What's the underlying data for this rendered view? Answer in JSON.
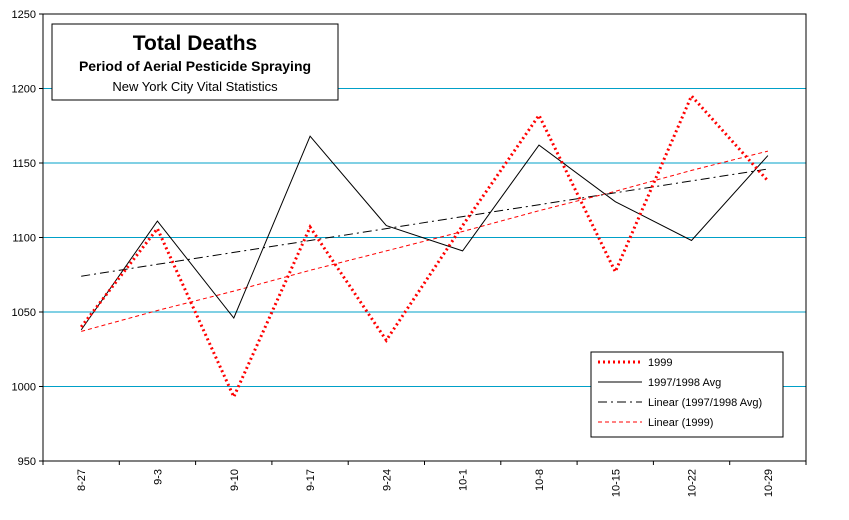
{
  "chart_data": {
    "type": "line",
    "title": "Total Deaths",
    "subtitle": "Period of Aerial Pesticide Spraying",
    "subtitle2": "New York City Vital Statistics",
    "xlabel": "",
    "ylabel": "",
    "categories": [
      "8-27",
      "9-3",
      "9-10",
      "9-17",
      "9-24",
      "10-1",
      "10-8",
      "10-15",
      "10-22",
      "10-29"
    ],
    "ylim": [
      950,
      1250
    ],
    "yticks": [
      "950",
      "1000",
      "1050",
      "1100",
      "1150",
      "1200",
      "1250"
    ],
    "grid": true,
    "legend_position": "bottom-right",
    "series": [
      {
        "name": "1999",
        "values": [
          1040,
          1106,
          993,
          1107,
          1031,
          1108,
          1182,
          1077,
          1195,
          1138
        ],
        "color": "#ff0000",
        "style": "dotted"
      },
      {
        "name": "1997/1998 Avg",
        "values": [
          1038,
          1111,
          1046,
          1168,
          1108,
          1091,
          1162,
          1124,
          1098,
          1155
        ],
        "color": "#000000",
        "style": "solid"
      },
      {
        "name": "Linear (1997/1998 Avg)",
        "values": [
          1074,
          1082,
          1090,
          1098,
          1106,
          1114,
          1122,
          1130,
          1138,
          1146
        ],
        "color": "#000000",
        "style": "dashdot"
      },
      {
        "name": "Linear (1999)",
        "values": [
          1037,
          1051,
          1064,
          1078,
          1091,
          1104,
          1118,
          1131,
          1145,
          1158
        ],
        "color": "#ff0000",
        "style": "dashed"
      }
    ],
    "colors": {
      "grid": "#00a0c8",
      "background": "#ffffff",
      "axis": "#000000"
    }
  }
}
